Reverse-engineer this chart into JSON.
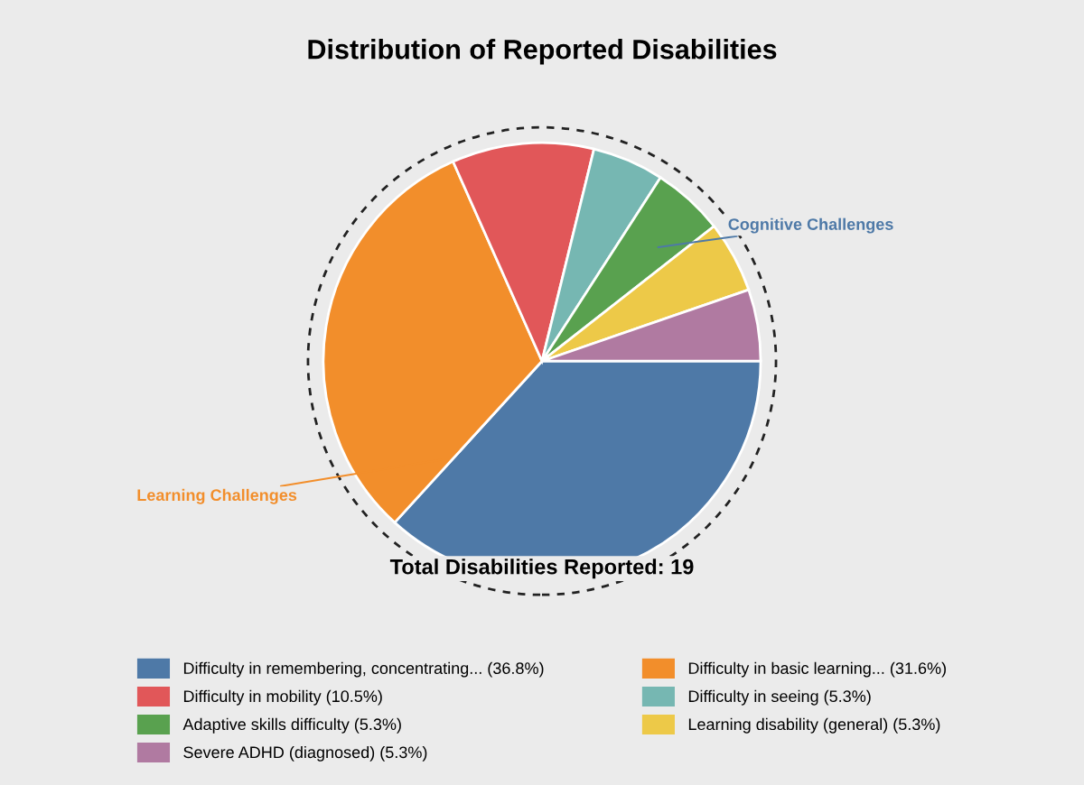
{
  "chart_data": {
    "type": "pie",
    "title": "Distribution of Reported Disabilities",
    "categories": [
      "Difficulty in remembering, concentrating... (36.8%)",
      "Difficulty in basic learning... (31.6%)",
      "Difficulty in mobility (10.5%)",
      "Difficulty in seeing (5.3%)",
      "Adaptive skills difficulty (5.3%)",
      "Learning disability (general) (5.3%)",
      "Severe ADHD (diagnosed) (5.3%)"
    ],
    "values": [
      36.8,
      31.6,
      10.5,
      5.3,
      5.3,
      5.3,
      5.3
    ],
    "colors": [
      "#4e79a7",
      "#f28e2b",
      "#e15759",
      "#76b7b2",
      "#59a14f",
      "#edc948",
      "#b07aa1"
    ],
    "annotations": [
      "Cognitive Challenges",
      "Learning Challenges",
      "Total Disabilities Reported: 19"
    ],
    "legend": "bottom"
  }
}
